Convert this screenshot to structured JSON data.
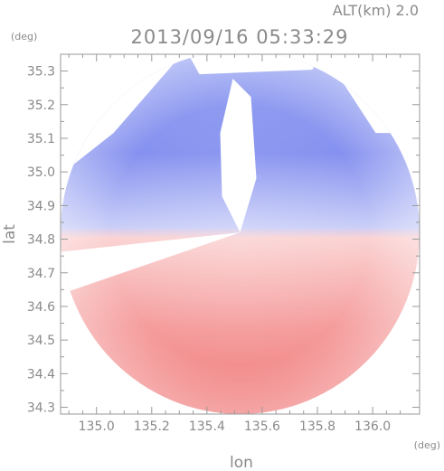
{
  "header": {
    "altitude_label": "ALT(km) 2.0",
    "timestamp": "2013/09/16 05:33:29"
  },
  "chart_data": {
    "type": "heatmap",
    "title": "2013/09/16 05:33:29",
    "subtitle": "ALT(km) 2.0",
    "xlabel": "lon",
    "ylabel": "lat",
    "x_unit": "(deg)",
    "y_unit": "(deg)",
    "xlim": [
      134.87,
      136.17
    ],
    "ylim": [
      34.28,
      35.35
    ],
    "xticks": [
      135.0,
      135.2,
      135.4,
      135.6,
      135.8,
      136.0
    ],
    "xtick_labels": [
      "135.0",
      "135.2",
      "135.4",
      "135.6",
      "135.8",
      "136.0"
    ],
    "yticks": [
      34.3,
      34.4,
      34.5,
      34.6,
      34.7,
      34.8,
      34.9,
      35.0,
      35.1,
      35.2,
      35.3
    ],
    "ytick_labels": [
      "34.3",
      "34.4",
      "34.5",
      "34.6",
      "34.7",
      "34.8",
      "34.9",
      "35.0",
      "35.1",
      "35.2",
      "35.3"
    ],
    "radar_center": {
      "lon": 135.52,
      "lat": 34.82
    },
    "coverage_radius_deg": {
      "lon": 0.65,
      "lat": 0.54
    },
    "colormap": {
      "negative": "#7a86ee",
      "zero": "#ffffff",
      "positive": "#f06a6a"
    },
    "grid": false
  }
}
